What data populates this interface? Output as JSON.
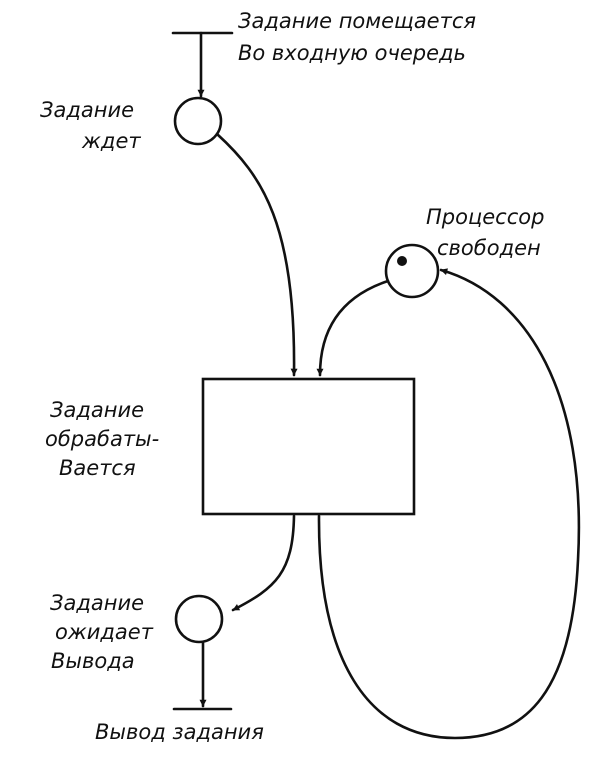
{
  "labels": {
    "enqueue_line1": "Задание помещается",
    "enqueue_line2": "Во входную очередь",
    "waiting_line1": "Задание",
    "waiting_line2": "ждет",
    "processor_line1": "Процессор",
    "processor_line2": "свободен",
    "processing_line1": "Задание",
    "processing_line2": "обрабаты-",
    "processing_line3": "Вается",
    "output_wait_line1": "Задание",
    "output_wait_line2": "ожидает",
    "output_wait_line3": "Вывода",
    "output_line1": "Вывод задания"
  },
  "colors": {
    "ink": "#111111",
    "paper": "#ffffff"
  }
}
